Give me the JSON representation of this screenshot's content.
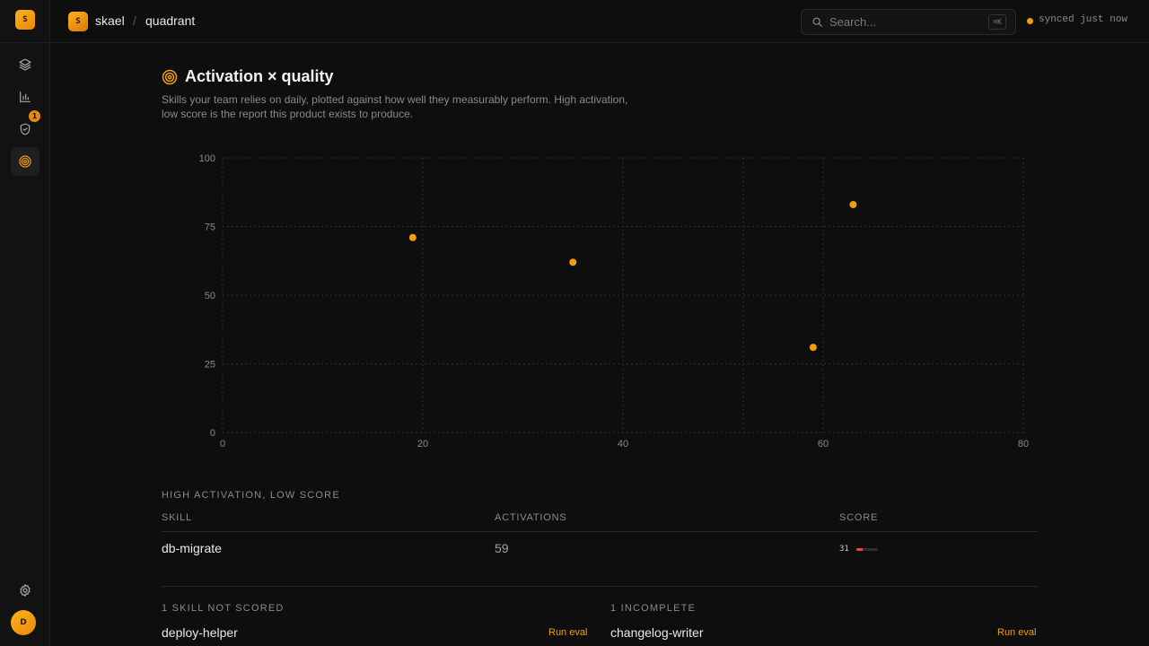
{
  "sidebar": {
    "logo_letter": "S",
    "nav": [
      {
        "icon": "layers-icon"
      },
      {
        "icon": "bar-chart-icon"
      },
      {
        "icon": "shield-check-icon",
        "badge": "1"
      },
      {
        "icon": "target-icon",
        "active": true
      }
    ],
    "settings_icon": "gear-icon",
    "user_initial": "D"
  },
  "topbar": {
    "logo_letter": "S",
    "breadcrumb": {
      "org": "skael",
      "separator": "/",
      "page": "quadrant"
    },
    "search": {
      "placeholder": "Search...",
      "shortcut": "⌘K"
    },
    "sync_status": "synced just now"
  },
  "main": {
    "title": "Activation × quality",
    "subtitle": "Skills your team relies on daily, plotted against how well they measurably perform. High activation, low score is the report this product exists to produce."
  },
  "chart_data": {
    "type": "scatter",
    "xlim": [
      0,
      80
    ],
    "ylim": [
      0,
      100
    ],
    "xticks": [
      0,
      20,
      40,
      60,
      80
    ],
    "yticks": [
      0,
      25,
      50,
      75,
      100
    ],
    "grid": true,
    "point_color": "#f59e0b",
    "points": [
      {
        "x": 19,
        "y": 71
      },
      {
        "x": 35,
        "y": 62
      },
      {
        "x": 59,
        "y": 31
      },
      {
        "x": 63,
        "y": 83
      }
    ]
  },
  "high_activation_low_score": {
    "label": "HIGH ACTIVATION, LOW SCORE",
    "columns": [
      "SKILL",
      "ACTIVATIONS",
      "SCORE"
    ],
    "rows": [
      {
        "skill": "db-migrate",
        "activations": "59",
        "score": "31",
        "score_value": 31,
        "score_color": "#ef4444"
      }
    ]
  },
  "not_scored": {
    "label": "1 SKILL NOT SCORED",
    "items": [
      {
        "name": "deploy-helper",
        "action": "Run eval"
      }
    ]
  },
  "incomplete": {
    "label": "1 INCOMPLETE",
    "items": [
      {
        "name": "changelog-writer",
        "action": "Run eval"
      }
    ]
  }
}
